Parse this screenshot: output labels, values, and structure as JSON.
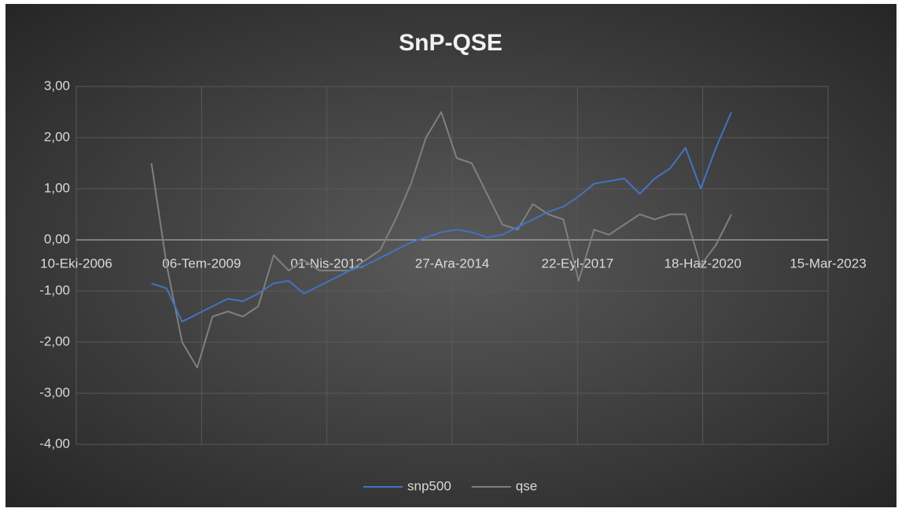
{
  "chart_data": {
    "type": "line",
    "title": "SnP-QSE",
    "x": [
      "2008-06-01",
      "2008-10-01",
      "2009-02-01",
      "2009-06-01",
      "2009-10-01",
      "2010-02-01",
      "2010-06-01",
      "2010-10-01",
      "2011-02-01",
      "2011-06-01",
      "2011-10-01",
      "2012-02-01",
      "2012-06-01",
      "2012-10-01",
      "2013-02-01",
      "2013-06-01",
      "2013-10-01",
      "2014-02-01",
      "2014-06-01",
      "2014-10-01",
      "2015-02-01",
      "2015-06-01",
      "2015-10-01",
      "2016-02-01",
      "2016-06-01",
      "2016-10-01",
      "2017-02-01",
      "2017-06-01",
      "2017-10-01",
      "2018-02-01",
      "2018-06-01",
      "2018-10-01",
      "2019-02-01",
      "2019-06-01",
      "2019-10-01",
      "2020-02-01",
      "2020-06-01",
      "2020-10-01",
      "2021-02-01"
    ],
    "series": [
      {
        "name": "snp500",
        "color": "#4472c4",
        "values": [
          -0.85,
          -0.95,
          -1.6,
          -1.45,
          -1.3,
          -1.15,
          -1.2,
          -1.05,
          -0.85,
          -0.8,
          -1.05,
          -0.9,
          -0.75,
          -0.6,
          -0.5,
          -0.35,
          -0.2,
          -0.05,
          0.05,
          0.15,
          0.2,
          0.15,
          0.05,
          0.1,
          0.25,
          0.4,
          0.55,
          0.65,
          0.85,
          1.1,
          1.15,
          1.2,
          0.9,
          1.2,
          1.4,
          1.8,
          1.0,
          1.8,
          2.5
        ]
      },
      {
        "name": "qse",
        "color": "#7f7f7f",
        "values": [
          1.5,
          -0.5,
          -2.0,
          -2.5,
          -1.5,
          -1.4,
          -1.5,
          -1.3,
          -0.3,
          -0.6,
          -0.4,
          -0.6,
          -0.6,
          -0.6,
          -0.4,
          -0.2,
          0.4,
          1.1,
          2.0,
          2.5,
          1.6,
          1.5,
          0.9,
          0.3,
          0.2,
          0.7,
          0.5,
          0.4,
          -0.8,
          0.2,
          0.1,
          0.3,
          0.5,
          0.4,
          0.5,
          0.5,
          -0.5,
          -0.1,
          0.5
        ]
      }
    ],
    "xlim": [
      "2006-10-10",
      "2023-03-15"
    ],
    "xticks": [
      {
        "value": "2006-10-10",
        "label": "10-Eki-2006"
      },
      {
        "value": "2009-07-06",
        "label": "06-Tem-2009"
      },
      {
        "value": "2012-04-01",
        "label": "01-Nis-2012"
      },
      {
        "value": "2014-12-27",
        "label": "27-Ara-2014"
      },
      {
        "value": "2017-09-22",
        "label": "22-Eyl-2017"
      },
      {
        "value": "2020-06-18",
        "label": "18-Haz-2020"
      },
      {
        "value": "2023-03-15",
        "label": "15-Mar-2023"
      }
    ],
    "ylim": [
      -4,
      3
    ],
    "yticks": [
      {
        "value": 3,
        "label": "3,00"
      },
      {
        "value": 2,
        "label": "2,00"
      },
      {
        "value": 1,
        "label": "1,00"
      },
      {
        "value": 0,
        "label": "0,00"
      },
      {
        "value": -1,
        "label": "-1,00"
      },
      {
        "value": -2,
        "label": "-2,00"
      },
      {
        "value": -3,
        "label": "-3,00"
      },
      {
        "value": -4,
        "label": "-4,00"
      }
    ],
    "grid": true,
    "legend": "bottom"
  }
}
